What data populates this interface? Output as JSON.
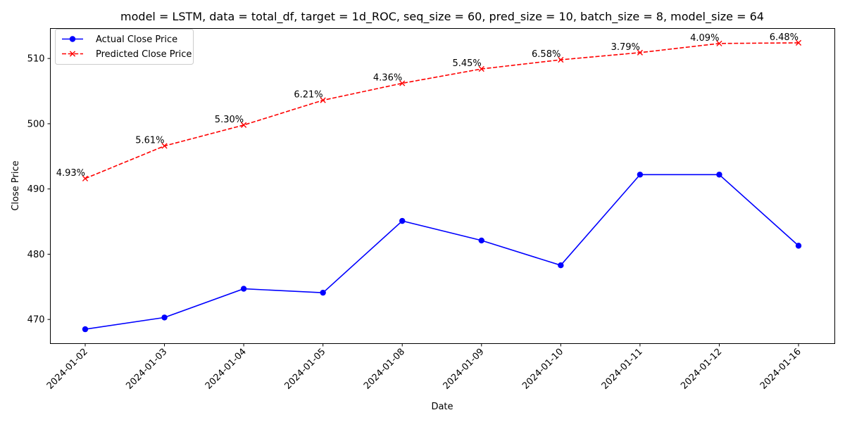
{
  "chart_data": {
    "type": "line",
    "title": "model = LSTM, data = total_df, target = 1d_ROC, seq_size = 60, pred_size = 10, batch_size = 8, model_size = 64",
    "xlabel": "Date",
    "ylabel": "Close Price",
    "categories": [
      "2024-01-02",
      "2024-01-03",
      "2024-01-04",
      "2024-01-05",
      "2024-01-08",
      "2024-01-09",
      "2024-01-10",
      "2024-01-11",
      "2024-01-12",
      "2024-01-16"
    ],
    "ylim": [
      466.3,
      514.6
    ],
    "yticks": [
      470,
      480,
      490,
      500,
      510
    ],
    "grid": false,
    "legend_position": "top-left",
    "series": [
      {
        "name": "Actual Close Price",
        "color": "#0000ff",
        "marker": "circle",
        "linestyle": "solid",
        "values": [
          468.5,
          470.3,
          474.7,
          474.1,
          485.1,
          482.1,
          478.3,
          492.2,
          492.2,
          481.3
        ]
      },
      {
        "name": "Predicted Close Price",
        "color": "#ff0000",
        "marker": "x",
        "linestyle": "dashed",
        "values": [
          491.6,
          496.6,
          499.8,
          503.6,
          506.2,
          508.4,
          509.8,
          510.9,
          512.3,
          512.4
        ],
        "point_labels": [
          "4.93%",
          "5.61%",
          "5.30%",
          "6.21%",
          "4.36%",
          "5.45%",
          "6.58%",
          "3.79%",
          "4.09%",
          "6.48%"
        ]
      }
    ]
  }
}
